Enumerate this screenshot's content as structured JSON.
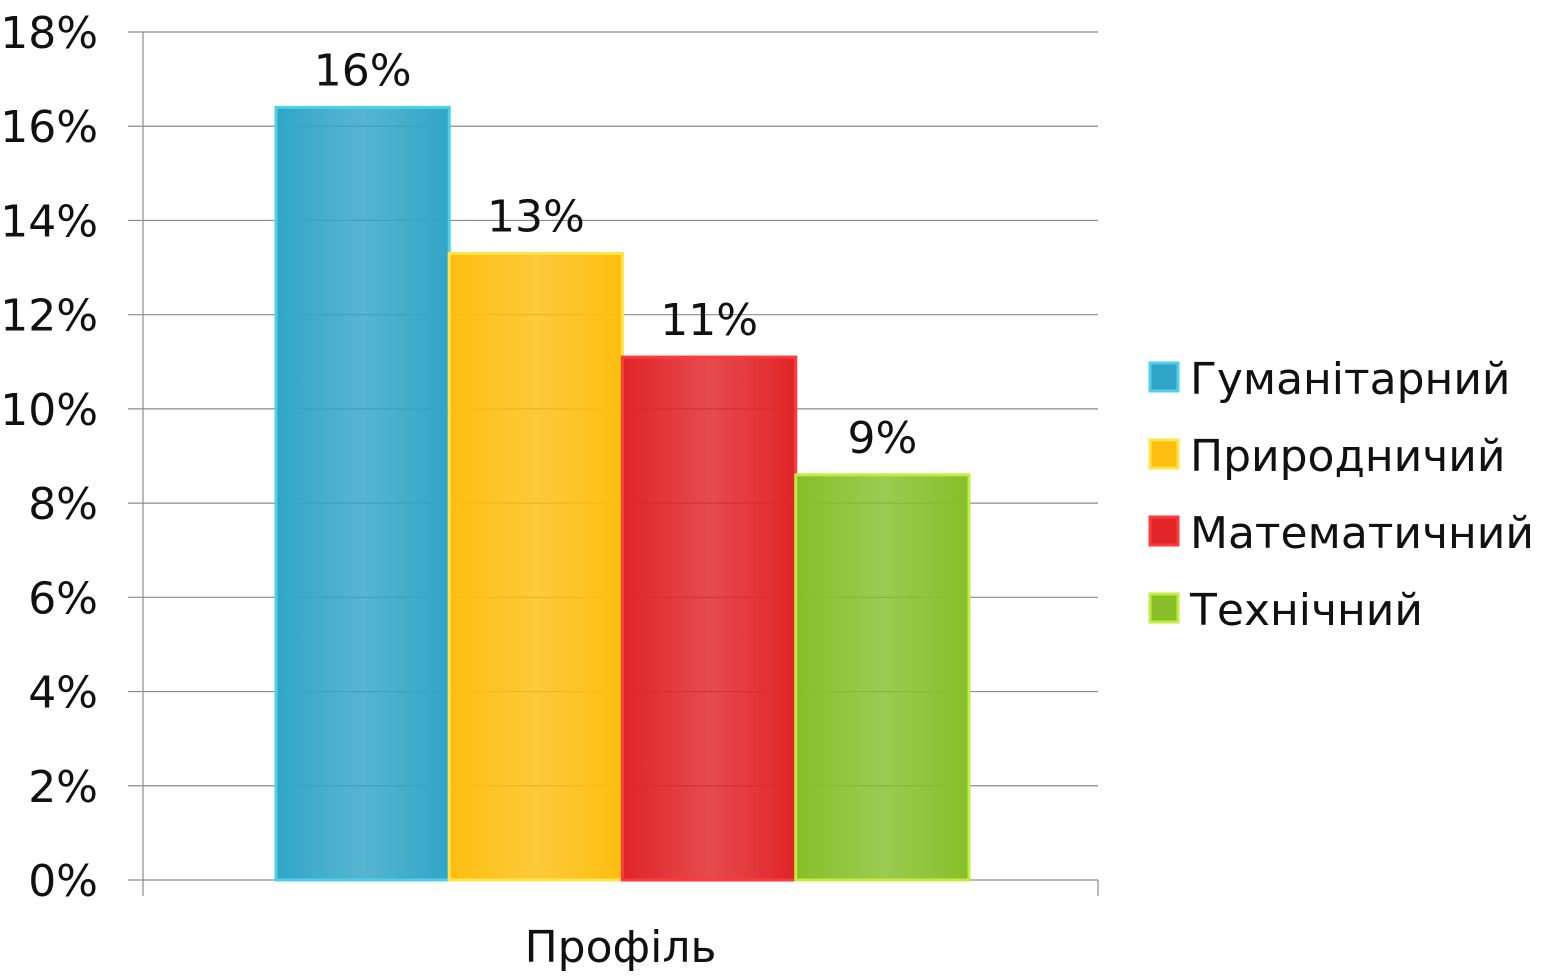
{
  "chart_data": {
    "type": "bar",
    "title": "",
    "xlabel": "",
    "ylabel": "",
    "categories": [
      "Профіль"
    ],
    "ylim": [
      0,
      18
    ],
    "yticks": [
      "0%",
      "2%",
      "4%",
      "6%",
      "8%",
      "10%",
      "12%",
      "14%",
      "16%",
      "18%"
    ],
    "y_unit": "%",
    "grid": true,
    "legend_position": "right",
    "series": [
      {
        "name": "Гуманітарний",
        "values": [
          16.4
        ],
        "label": "16%",
        "color": "#31A5C7",
        "edge": "#4FD0EA"
      },
      {
        "name": "Природничий",
        "values": [
          13.3
        ],
        "label": "13%",
        "color": "#FDBE0F",
        "edge": "#FFE54A"
      },
      {
        "name": "Математичний",
        "values": [
          11.1
        ],
        "label": "11%",
        "color": "#E02428",
        "edge": "#FF3A3A"
      },
      {
        "name": "Технічний",
        "values": [
          8.6
        ],
        "label": "9%",
        "color": "#86BF2A",
        "edge": "#C2EC40"
      }
    ]
  }
}
